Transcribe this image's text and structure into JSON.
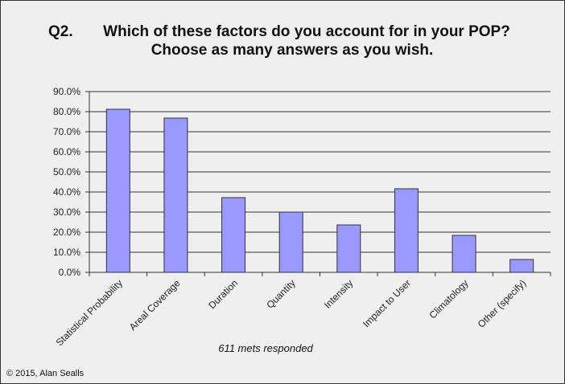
{
  "chart_data": {
    "type": "bar",
    "title_prefix": "Q2.",
    "title": [
      "Which of these factors do you account for in your POP?",
      "Choose as many answers as you wish."
    ],
    "categories": [
      "Statistical Probability",
      "Areal Coverage",
      "Duration",
      "Quantity",
      "Intensity",
      "Impact to User",
      "Climatology",
      "Other (specify)"
    ],
    "values": [
      81.2,
      76.8,
      37.2,
      30.0,
      23.6,
      41.6,
      18.4,
      6.4
    ],
    "ylim": [
      0,
      90
    ],
    "yticks": [
      "0.0%",
      "10.0%",
      "20.0%",
      "30.0%",
      "40.0%",
      "50.0%",
      "60.0%",
      "70.0%",
      "80.0%",
      "90.0%"
    ],
    "grid": true,
    "bar_color": "#9999ff",
    "xlabel": "611 mets responded",
    "ylabel": ""
  },
  "footer": {
    "copyright": "© 2015, Alan Sealls"
  }
}
